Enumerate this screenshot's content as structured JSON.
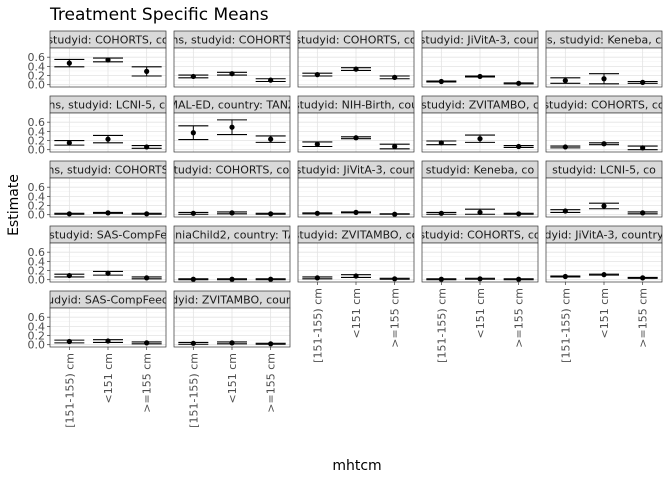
{
  "chart_data": {
    "type": "errorbar",
    "title": "Treatment Specific Means",
    "xlabel": "mhtcm",
    "ylabel": "Estimate",
    "categories": [
      "[151-155) cm",
      "<151 cm",
      ">=155 cm"
    ],
    "ylim": [
      -0.05,
      0.8
    ],
    "yticks": [
      0.0,
      0.2,
      0.4,
      0.6
    ],
    "ytick_labels": [
      "0.0",
      "0.2",
      "0.4",
      "0.6"
    ],
    "grid": true,
    "panels": [
      {
        "label": "studyid: COHORTS, co",
        "estimates": [
          0.47,
          0.54,
          0.29
        ],
        "lower": [
          0.39,
          0.5,
          0.19
        ],
        "upper": [
          0.55,
          0.58,
          0.39
        ]
      },
      {
        "label": "hs, studyid: COHORTS",
        "estimates": [
          0.18,
          0.24,
          0.1
        ],
        "lower": [
          0.15,
          0.21,
          0.07
        ],
        "upper": [
          0.21,
          0.27,
          0.13
        ]
      },
      {
        "label": "studyid: COHORTS, co",
        "estimates": [
          0.22,
          0.34,
          0.16
        ],
        "lower": [
          0.19,
          0.31,
          0.13
        ],
        "upper": [
          0.25,
          0.37,
          0.19
        ]
      },
      {
        "label": "studyid: JiVitA-3, coun",
        "estimates": [
          0.07,
          0.18,
          0.03
        ],
        "lower": [
          0.06,
          0.17,
          0.02
        ],
        "upper": [
          0.08,
          0.19,
          0.04
        ]
      },
      {
        "label": "hs, studyid: Keneba, co",
        "estimates": [
          0.09,
          0.13,
          0.05
        ],
        "lower": [
          0.03,
          0.02,
          0.03
        ],
        "upper": [
          0.15,
          0.24,
          0.07
        ]
      },
      {
        "label": "ths, studyid: LCNI-5, co",
        "estimates": [
          0.15,
          0.23,
          0.06
        ],
        "lower": [
          0.1,
          0.15,
          0.03
        ],
        "upper": [
          0.2,
          0.31,
          0.09
        ]
      },
      {
        "label": "MAL-ED, country: TANZ",
        "estimates": [
          0.37,
          0.49,
          0.23
        ],
        "lower": [
          0.22,
          0.33,
          0.16
        ],
        "upper": [
          0.52,
          0.65,
          0.3
        ]
      },
      {
        "label": "studyid: NIH-Birth, cou",
        "estimates": [
          0.12,
          0.26,
          0.07
        ],
        "lower": [
          0.07,
          0.24,
          0.02
        ],
        "upper": [
          0.17,
          0.28,
          0.12
        ]
      },
      {
        "label": "studyid: ZVITAMBO, c",
        "estimates": [
          0.15,
          0.24,
          0.07
        ],
        "lower": [
          0.11,
          0.16,
          0.05
        ],
        "upper": [
          0.19,
          0.32,
          0.09
        ]
      },
      {
        "label": "studyid: COHORTS, co",
        "estimates": [
          0.06,
          0.13,
          0.04
        ],
        "lower": [
          0.04,
          0.11,
          0.0
        ],
        "upper": [
          0.08,
          0.15,
          0.08
        ]
      },
      {
        "label": "hs, studyid: COHORTS",
        "estimates": [
          0.02,
          0.04,
          0.02
        ],
        "lower": [
          0.01,
          0.03,
          0.01
        ],
        "upper": [
          0.03,
          0.05,
          0.03
        ]
      },
      {
        "label": "studyid: COHORTS, cou",
        "estimates": [
          0.03,
          0.04,
          0.02
        ],
        "lower": [
          0.01,
          0.02,
          0.01
        ],
        "upper": [
          0.05,
          0.06,
          0.03
        ]
      },
      {
        "label": "studyid: JiVitA-3, coun",
        "estimates": [
          0.03,
          0.05,
          0.01
        ],
        "lower": [
          0.02,
          0.04,
          0.01
        ],
        "upper": [
          0.04,
          0.06,
          0.02
        ]
      },
      {
        "label": "studyid: Keneba, co",
        "estimates": [
          0.03,
          0.05,
          0.02
        ],
        "lower": [
          0.01,
          0.01,
          0.01
        ],
        "upper": [
          0.05,
          0.12,
          0.03
        ]
      },
      {
        "label": "studyid: LCNI-5, co",
        "estimates": [
          0.08,
          0.19,
          0.04
        ],
        "lower": [
          0.05,
          0.13,
          0.02
        ],
        "upper": [
          0.11,
          0.25,
          0.06
        ]
      },
      {
        "label": "studyid: SAS-CompFe",
        "estimates": [
          0.09,
          0.14,
          0.04
        ],
        "lower": [
          0.06,
          0.1,
          0.02
        ],
        "upper": [
          0.12,
          0.18,
          0.06
        ]
      },
      {
        "label": "aniaChild2, country: TA",
        "estimates": [
          0.01,
          0.01,
          0.01
        ],
        "lower": [
          0.0,
          0.0,
          0.0
        ],
        "upper": [
          0.02,
          0.02,
          0.02
        ]
      },
      {
        "label": "studyid: ZVITAMBO, co",
        "estimates": [
          0.04,
          0.08,
          0.02
        ],
        "lower": [
          0.02,
          0.05,
          0.01
        ],
        "upper": [
          0.06,
          0.11,
          0.03
        ]
      },
      {
        "label": "studyid: COHORTS, co",
        "estimates": [
          0.01,
          0.02,
          0.01
        ],
        "lower": [
          0.0,
          0.01,
          0.0
        ],
        "upper": [
          0.02,
          0.03,
          0.02
        ]
      },
      {
        "label": "dyid: JiVitA-3, country",
        "estimates": [
          0.07,
          0.11,
          0.04
        ],
        "lower": [
          0.06,
          0.1,
          0.03
        ],
        "upper": [
          0.08,
          0.12,
          0.05
        ]
      },
      {
        "label": "udyid: SAS-CompFeed",
        "estimates": [
          0.07,
          0.08,
          0.04
        ],
        "lower": [
          0.04,
          0.05,
          0.02
        ],
        "upper": [
          0.1,
          0.11,
          0.06
        ]
      },
      {
        "label": "dyid: ZVITAMBO, coun",
        "estimates": [
          0.03,
          0.04,
          0.02
        ],
        "lower": [
          0.01,
          0.02,
          0.01
        ],
        "upper": [
          0.05,
          0.06,
          0.03
        ]
      }
    ]
  }
}
